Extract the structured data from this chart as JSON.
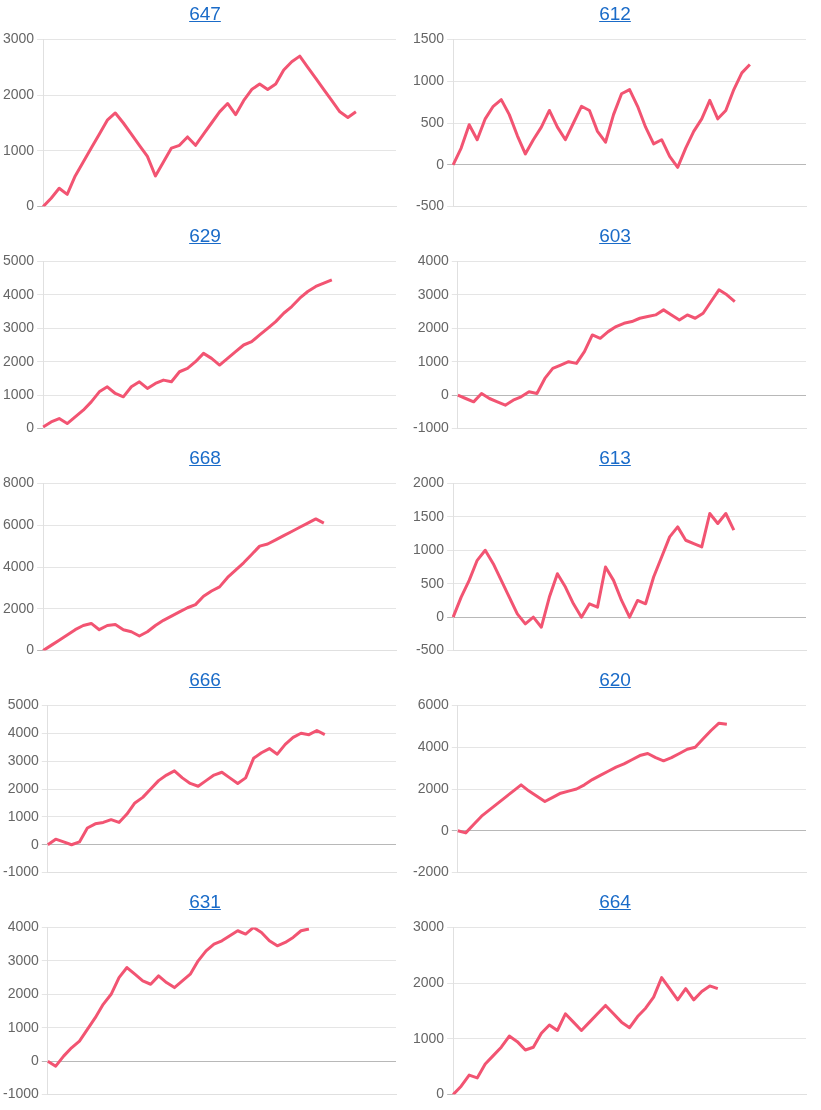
{
  "chart_data": [
    {
      "type": "line",
      "title": "647",
      "color": "#f25472",
      "marker": "none",
      "grid": "y",
      "tick_labels": "y",
      "ylim": [
        0,
        3000
      ],
      "yticks": [
        0,
        1000,
        2000,
        3000
      ],
      "categories": [
        null,
        null,
        null,
        null,
        null,
        null,
        null,
        null,
        null,
        null,
        null,
        null,
        null,
        null,
        null,
        null,
        null,
        null,
        null,
        null,
        null,
        null,
        null,
        null,
        null,
        null,
        null,
        null,
        null,
        null,
        null,
        null,
        null,
        null,
        null,
        null,
        null,
        null,
        null,
        null,
        null,
        null,
        null,
        null,
        null
      ],
      "values": [
        0,
        150,
        330,
        220,
        550,
        800,
        1050,
        1300,
        1550,
        1680,
        1500,
        1300,
        1100,
        900,
        550,
        800,
        1050,
        1100,
        1250,
        1100,
        1300,
        1500,
        1700,
        1850,
        1650,
        1900,
        2100,
        2200,
        2100,
        2200,
        2450,
        2600,
        2700,
        2500,
        2300,
        2100,
        1900,
        1700,
        1600,
        1700,
        null,
        null,
        null,
        null,
        null
      ]
    },
    {
      "type": "line",
      "title": "612",
      "color": "#f25472",
      "marker": "none",
      "grid": "y",
      "tick_labels": "y",
      "ylim": [
        -500,
        1500
      ],
      "yticks": [
        -500,
        0,
        500,
        1000,
        1500
      ],
      "categories": [
        null,
        null,
        null,
        null,
        null,
        null,
        null,
        null,
        null,
        null,
        null,
        null,
        null,
        null,
        null,
        null,
        null,
        null,
        null,
        null,
        null,
        null,
        null,
        null,
        null,
        null,
        null,
        null,
        null,
        null,
        null,
        null,
        null,
        null,
        null,
        null,
        null,
        null,
        null,
        null,
        null,
        null,
        null,
        null,
        null
      ],
      "values": [
        0,
        200,
        480,
        300,
        550,
        700,
        780,
        600,
        350,
        130,
        300,
        450,
        650,
        450,
        300,
        500,
        700,
        650,
        400,
        270,
        600,
        850,
        900,
        700,
        450,
        250,
        300,
        100,
        -30,
        200,
        400,
        550,
        770,
        550,
        650,
        900,
        1100,
        1200,
        null,
        null,
        null,
        null,
        null,
        null,
        null
      ]
    },
    {
      "type": "line",
      "title": "629",
      "color": "#f25472",
      "marker": "none",
      "grid": "y",
      "tick_labels": "y",
      "ylim": [
        0,
        5000
      ],
      "yticks": [
        0,
        1000,
        2000,
        3000,
        4000,
        5000
      ],
      "categories": [
        null,
        null,
        null,
        null,
        null,
        null,
        null,
        null,
        null,
        null,
        null,
        null,
        null,
        null,
        null,
        null,
        null,
        null,
        null,
        null,
        null,
        null,
        null,
        null,
        null,
        null,
        null,
        null,
        null,
        null,
        null,
        null,
        null,
        null,
        null,
        null,
        null,
        null,
        null,
        null,
        null,
        null,
        null,
        null,
        null
      ],
      "values": [
        50,
        200,
        300,
        150,
        350,
        550,
        800,
        1100,
        1250,
        1050,
        950,
        1250,
        1400,
        1200,
        1350,
        1450,
        1400,
        1700,
        1800,
        2000,
        2250,
        2100,
        1900,
        2100,
        2300,
        2500,
        2600,
        2800,
        3000,
        3200,
        3450,
        3650,
        3900,
        4100,
        4250,
        4350,
        4450,
        null,
        null,
        null,
        null,
        null,
        null,
        null,
        null
      ]
    },
    {
      "type": "line",
      "title": "603",
      "color": "#f25472",
      "marker": "none",
      "grid": "y",
      "tick_labels": "y",
      "ylim": [
        -1000,
        4000
      ],
      "yticks": [
        -1000,
        0,
        1000,
        2000,
        3000,
        4000
      ],
      "categories": [
        null,
        null,
        null,
        null,
        null,
        null,
        null,
        null,
        null,
        null,
        null,
        null,
        null,
        null,
        null,
        null,
        null,
        null,
        null,
        null,
        null,
        null,
        null,
        null,
        null,
        null,
        null,
        null,
        null,
        null,
        null,
        null,
        null,
        null,
        null,
        null,
        null,
        null,
        null,
        null,
        null,
        null,
        null,
        null,
        null
      ],
      "values": [
        0,
        -100,
        -200,
        50,
        -100,
        -200,
        -300,
        -150,
        -50,
        100,
        50,
        500,
        800,
        900,
        1000,
        950,
        1300,
        1800,
        1700,
        1900,
        2050,
        2150,
        2200,
        2300,
        2350,
        2400,
        2550,
        2400,
        2250,
        2400,
        2300,
        2450,
        2800,
        3150,
        3000,
        2800,
        null,
        null,
        null,
        null,
        null,
        null,
        null,
        null,
        null
      ]
    },
    {
      "type": "line",
      "title": "668",
      "color": "#f25472",
      "marker": "none",
      "grid": "y",
      "tick_labels": "y",
      "ylim": [
        0,
        8000
      ],
      "yticks": [
        0,
        2000,
        4000,
        6000,
        8000
      ],
      "categories": [
        null,
        null,
        null,
        null,
        null,
        null,
        null,
        null,
        null,
        null,
        null,
        null,
        null,
        null,
        null,
        null,
        null,
        null,
        null,
        null,
        null,
        null,
        null,
        null,
        null,
        null,
        null,
        null,
        null,
        null,
        null,
        null,
        null,
        null,
        null,
        null,
        null,
        null,
        null,
        null,
        null,
        null,
        null,
        null,
        null
      ],
      "values": [
        0,
        250,
        500,
        750,
        1000,
        1200,
        1300,
        1000,
        1200,
        1250,
        1000,
        900,
        700,
        900,
        1200,
        1450,
        1650,
        1850,
        2050,
        2200,
        2600,
        2850,
        3050,
        3500,
        3850,
        4200,
        4600,
        5000,
        5100,
        5300,
        5500,
        5700,
        5900,
        6100,
        6300,
        6100,
        null,
        null,
        null,
        null,
        null,
        null,
        null,
        null,
        null
      ]
    },
    {
      "type": "line",
      "title": "613",
      "color": "#f25472",
      "marker": "none",
      "grid": "y",
      "tick_labels": "y",
      "ylim": [
        -500,
        2000
      ],
      "yticks": [
        -500,
        0,
        500,
        1000,
        1500,
        2000
      ],
      "categories": [
        null,
        null,
        null,
        null,
        null,
        null,
        null,
        null,
        null,
        null,
        null,
        null,
        null,
        null,
        null,
        null,
        null,
        null,
        null,
        null,
        null,
        null,
        null,
        null,
        null,
        null,
        null,
        null,
        null,
        null,
        null,
        null,
        null,
        null,
        null,
        null,
        null,
        null,
        null,
        null,
        null,
        null,
        null,
        null,
        null
      ],
      "values": [
        0,
        300,
        550,
        850,
        1000,
        800,
        550,
        300,
        50,
        -100,
        0,
        -150,
        300,
        650,
        450,
        200,
        0,
        200,
        150,
        750,
        550,
        250,
        0,
        250,
        200,
        600,
        900,
        1200,
        1350,
        1150,
        1100,
        1050,
        1550,
        1400,
        1550,
        1300,
        null,
        null,
        null,
        null,
        null,
        null,
        null,
        null,
        null
      ]
    },
    {
      "type": "line",
      "title": "666",
      "color": "#f25472",
      "marker": "none",
      "grid": "y",
      "tick_labels": "y",
      "ylim": [
        -1000,
        5000
      ],
      "yticks": [
        -1000,
        0,
        1000,
        2000,
        3000,
        4000,
        5000
      ],
      "categories": [
        null,
        null,
        null,
        null,
        null,
        null,
        null,
        null,
        null,
        null,
        null,
        null,
        null,
        null,
        null,
        null,
        null,
        null,
        null,
        null,
        null,
        null,
        null,
        null,
        null,
        null,
        null,
        null,
        null,
        null,
        null,
        null,
        null,
        null,
        null,
        null,
        null,
        null,
        null,
        null,
        null,
        null,
        null,
        null,
        null
      ],
      "values": [
        0,
        200,
        100,
        0,
        100,
        600,
        750,
        800,
        900,
        800,
        1100,
        1500,
        1700,
        2000,
        2300,
        2500,
        2650,
        2400,
        2200,
        2100,
        2300,
        2500,
        2600,
        2400,
        2200,
        2400,
        3100,
        3300,
        3450,
        3250,
        3600,
        3850,
        4000,
        3950,
        4100,
        3950,
        null,
        null,
        null,
        null,
        null,
        null,
        null,
        null,
        null
      ]
    },
    {
      "type": "line",
      "title": "620",
      "color": "#f25472",
      "marker": "none",
      "grid": "y",
      "tick_labels": "y",
      "ylim": [
        -2000,
        6000
      ],
      "yticks": [
        -2000,
        0,
        2000,
        4000,
        6000
      ],
      "categories": [
        null,
        null,
        null,
        null,
        null,
        null,
        null,
        null,
        null,
        null,
        null,
        null,
        null,
        null,
        null,
        null,
        null,
        null,
        null,
        null,
        null,
        null,
        null,
        null,
        null,
        null,
        null,
        null,
        null,
        null,
        null,
        null,
        null,
        null,
        null,
        null,
        null,
        null,
        null,
        null,
        null,
        null,
        null,
        null,
        null
      ],
      "values": [
        0,
        -100,
        300,
        700,
        1000,
        1300,
        1600,
        1900,
        2200,
        1900,
        1650,
        1400,
        1600,
        1800,
        1900,
        2000,
        2200,
        2450,
        2650,
        2850,
        3050,
        3200,
        3400,
        3600,
        3700,
        3500,
        3350,
        3500,
        3700,
        3900,
        4000,
        4400,
        4800,
        5150,
        5100,
        null,
        null,
        null,
        null,
        null,
        null,
        null,
        null,
        null,
        null
      ]
    },
    {
      "type": "line",
      "title": "631",
      "color": "#f25472",
      "marker": "none",
      "grid": "y",
      "tick_labels": "y",
      "ylim": [
        -1000,
        4000
      ],
      "yticks": [
        -1000,
        0,
        1000,
        2000,
        3000,
        4000
      ],
      "categories": [
        null,
        null,
        null,
        null,
        null,
        null,
        null,
        null,
        null,
        null,
        null,
        null,
        null,
        null,
        null,
        null,
        null,
        null,
        null,
        null,
        null,
        null,
        null,
        null,
        null,
        null,
        null,
        null,
        null,
        null,
        null,
        null,
        null,
        null,
        null,
        null,
        null,
        null,
        null,
        null,
        null,
        null,
        null,
        null,
        null
      ],
      "values": [
        0,
        -150,
        150,
        400,
        600,
        950,
        1300,
        1700,
        2000,
        2500,
        2800,
        2600,
        2400,
        2300,
        2550,
        2350,
        2200,
        2400,
        2600,
        3000,
        3300,
        3500,
        3600,
        3750,
        3900,
        3800,
        4000,
        3850,
        3600,
        3450,
        3550,
        3700,
        3900,
        3950,
        null,
        null,
        null,
        null,
        null,
        null,
        null,
        null,
        null,
        null,
        null
      ]
    },
    {
      "type": "line",
      "title": "664",
      "color": "#f25472",
      "marker": "none",
      "grid": "y",
      "tick_labels": "y",
      "ylim": [
        0,
        3000
      ],
      "yticks": [
        0,
        1000,
        2000,
        3000
      ],
      "categories": [
        null,
        null,
        null,
        null,
        null,
        null,
        null,
        null,
        null,
        null,
        null,
        null,
        null,
        null,
        null,
        null,
        null,
        null,
        null,
        null,
        null,
        null,
        null,
        null,
        null,
        null,
        null,
        null,
        null,
        null,
        null,
        null,
        null,
        null,
        null,
        null,
        null,
        null,
        null,
        null,
        null,
        null,
        null,
        null,
        null
      ],
      "values": [
        0,
        150,
        350,
        300,
        550,
        700,
        850,
        1050,
        950,
        800,
        850,
        1100,
        1250,
        1150,
        1450,
        1300,
        1150,
        1300,
        1450,
        1600,
        1450,
        1300,
        1200,
        1400,
        1550,
        1750,
        2100,
        1900,
        1700,
        1900,
        1700,
        1850,
        1950,
        1900,
        null,
        null,
        null,
        null,
        null,
        null,
        null,
        null,
        null,
        null,
        null
      ]
    }
  ]
}
